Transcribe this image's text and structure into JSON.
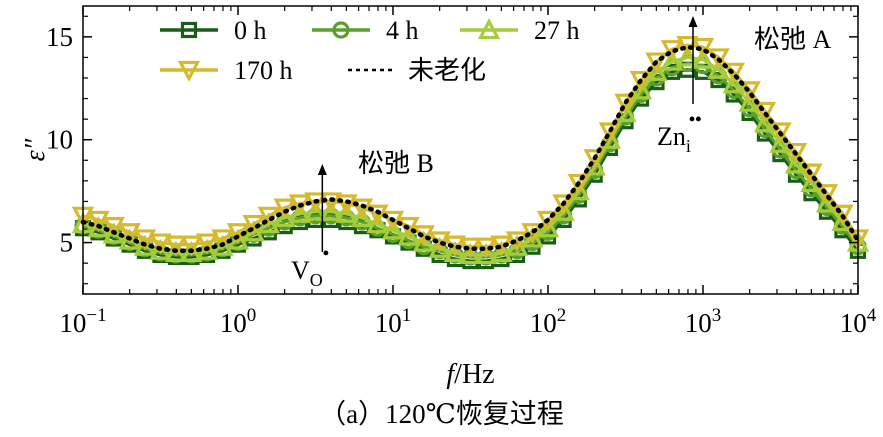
{
  "chart_data": {
    "type": "line",
    "x_scale": "log",
    "xlim": [
      0.1,
      10000
    ],
    "ylim": [
      2.5,
      16.5
    ],
    "x_ticks": [
      {
        "base": "10",
        "exp": "−1"
      },
      {
        "base": "10",
        "exp": "0"
      },
      {
        "base": "10",
        "exp": "1"
      },
      {
        "base": "10",
        "exp": "2"
      },
      {
        "base": "10",
        "exp": "3"
      },
      {
        "base": "10",
        "exp": "4"
      }
    ],
    "y_ticks": [
      5,
      10,
      15
    ],
    "y_tick_labels": [
      "5",
      "10",
      "15"
    ],
    "xlabel_italic": "f",
    "xlabel_rest": "/Hz",
    "ylabel": "ε″",
    "grid": false,
    "legend_position": "top-left",
    "x": [
      0.1,
      0.126,
      0.158,
      0.2,
      0.251,
      0.316,
      0.398,
      0.501,
      0.631,
      0.794,
      1,
      1.26,
      1.58,
      2,
      2.51,
      3.16,
      3.98,
      5.01,
      6.31,
      7.94,
      10,
      12.6,
      15.8,
      20,
      25.1,
      31.6,
      39.8,
      50.1,
      63.1,
      79.4,
      100,
      126,
      158,
      200,
      251,
      316,
      398,
      501,
      631,
      794,
      1000,
      1260,
      1580,
      2000,
      2510,
      3160,
      3980,
      5010,
      6310,
      7940,
      10000
    ],
    "series": [
      {
        "name": "0 h",
        "marker": "square",
        "color": "#1a5c1a",
        "values": [
          5.7,
          5.5,
          5.2,
          4.9,
          4.6,
          4.4,
          4.3,
          4.3,
          4.4,
          4.6,
          4.9,
          5.2,
          5.5,
          5.8,
          6.0,
          6.1,
          6.1,
          6.0,
          5.8,
          5.6,
          5.3,
          5.0,
          4.7,
          4.4,
          4.2,
          4.1,
          4.1,
          4.2,
          4.4,
          4.8,
          5.3,
          6.1,
          7.1,
          8.3,
          9.6,
          10.9,
          12.0,
          12.8,
          13.3,
          13.4,
          13.3,
          12.9,
          12.2,
          11.3,
          10.3,
          9.3,
          8.3,
          7.4,
          6.5,
          5.6,
          4.6
        ]
      },
      {
        "name": "4 h",
        "marker": "circle",
        "color": "#5aa02c",
        "values": [
          5.8,
          5.6,
          5.3,
          5.0,
          4.7,
          4.5,
          4.4,
          4.4,
          4.5,
          4.7,
          5.0,
          5.4,
          5.7,
          6.0,
          6.2,
          6.3,
          6.3,
          6.2,
          6.0,
          5.7,
          5.4,
          5.1,
          4.8,
          4.6,
          4.4,
          4.3,
          4.3,
          4.4,
          4.6,
          5.0,
          5.5,
          6.3,
          7.3,
          8.5,
          9.8,
          11.1,
          12.2,
          13.0,
          13.5,
          13.7,
          13.6,
          13.1,
          12.4,
          11.5,
          10.5,
          9.5,
          8.5,
          7.6,
          6.7,
          5.8,
          4.8
        ]
      },
      {
        "name": "27 h",
        "marker": "triangle-up",
        "color": "#a5cc3a",
        "values": [
          5.9,
          5.7,
          5.4,
          5.1,
          4.8,
          4.6,
          4.5,
          4.5,
          4.6,
          4.8,
          5.1,
          5.5,
          5.9,
          6.2,
          6.4,
          6.5,
          6.5,
          6.4,
          6.2,
          5.9,
          5.6,
          5.3,
          5.0,
          4.7,
          4.5,
          4.4,
          4.4,
          4.5,
          4.8,
          5.2,
          5.7,
          6.5,
          7.5,
          8.7,
          10.0,
          11.3,
          12.4,
          13.3,
          13.8,
          14.0,
          13.9,
          13.4,
          12.7,
          11.8,
          10.8,
          9.8,
          8.8,
          7.9,
          6.9,
          6.0,
          5.0
        ]
      },
      {
        "name": "170 h",
        "marker": "triangle-down",
        "color": "#d6b92c",
        "values": [
          6.3,
          6.1,
          5.8,
          5.5,
          5.2,
          5.0,
          4.9,
          4.9,
          5.0,
          5.2,
          5.5,
          5.9,
          6.3,
          6.7,
          6.9,
          7.0,
          7.0,
          6.9,
          6.7,
          6.4,
          6.1,
          5.8,
          5.4,
          5.1,
          4.9,
          4.8,
          4.8,
          4.9,
          5.1,
          5.5,
          6.1,
          6.9,
          7.9,
          9.1,
          10.4,
          11.8,
          12.9,
          13.8,
          14.4,
          14.6,
          14.5,
          14.0,
          13.3,
          12.4,
          11.4,
          10.4,
          9.4,
          8.4,
          7.4,
          6.4,
          5.2
        ]
      },
      {
        "name": "未老化",
        "marker": "none",
        "dashed": true,
        "color": "#000000",
        "values": [
          6.0,
          5.8,
          5.5,
          5.2,
          4.9,
          4.7,
          4.6,
          4.6,
          4.7,
          4.9,
          5.3,
          5.7,
          6.1,
          6.5,
          6.8,
          7.0,
          7.1,
          7.0,
          6.8,
          6.5,
          6.1,
          5.7,
          5.3,
          5.0,
          4.8,
          4.7,
          4.7,
          4.8,
          5.1,
          5.5,
          6.1,
          6.9,
          7.9,
          9.1,
          10.4,
          11.8,
          12.9,
          13.8,
          14.3,
          14.5,
          14.4,
          13.9,
          13.2,
          12.3,
          11.3,
          10.3,
          9.3,
          8.3,
          7.3,
          6.3,
          5.1
        ]
      }
    ],
    "annotations": [
      {
        "id": "relax-a",
        "text": "松弛 A",
        "x": 1000,
        "y": 14.6
      },
      {
        "id": "relax-b",
        "text": "松弛 B",
        "x": 3.5,
        "y": 7.0
      },
      {
        "id": "vo",
        "base": "V",
        "sub": "O",
        "sup": "•",
        "x": 3.5,
        "y": 6.0
      },
      {
        "id": "zni",
        "base": "Zn",
        "sub": "i",
        "sup": "••",
        "x": 900,
        "y": 12.6
      }
    ]
  },
  "caption": "（a）120℃恢复过程"
}
